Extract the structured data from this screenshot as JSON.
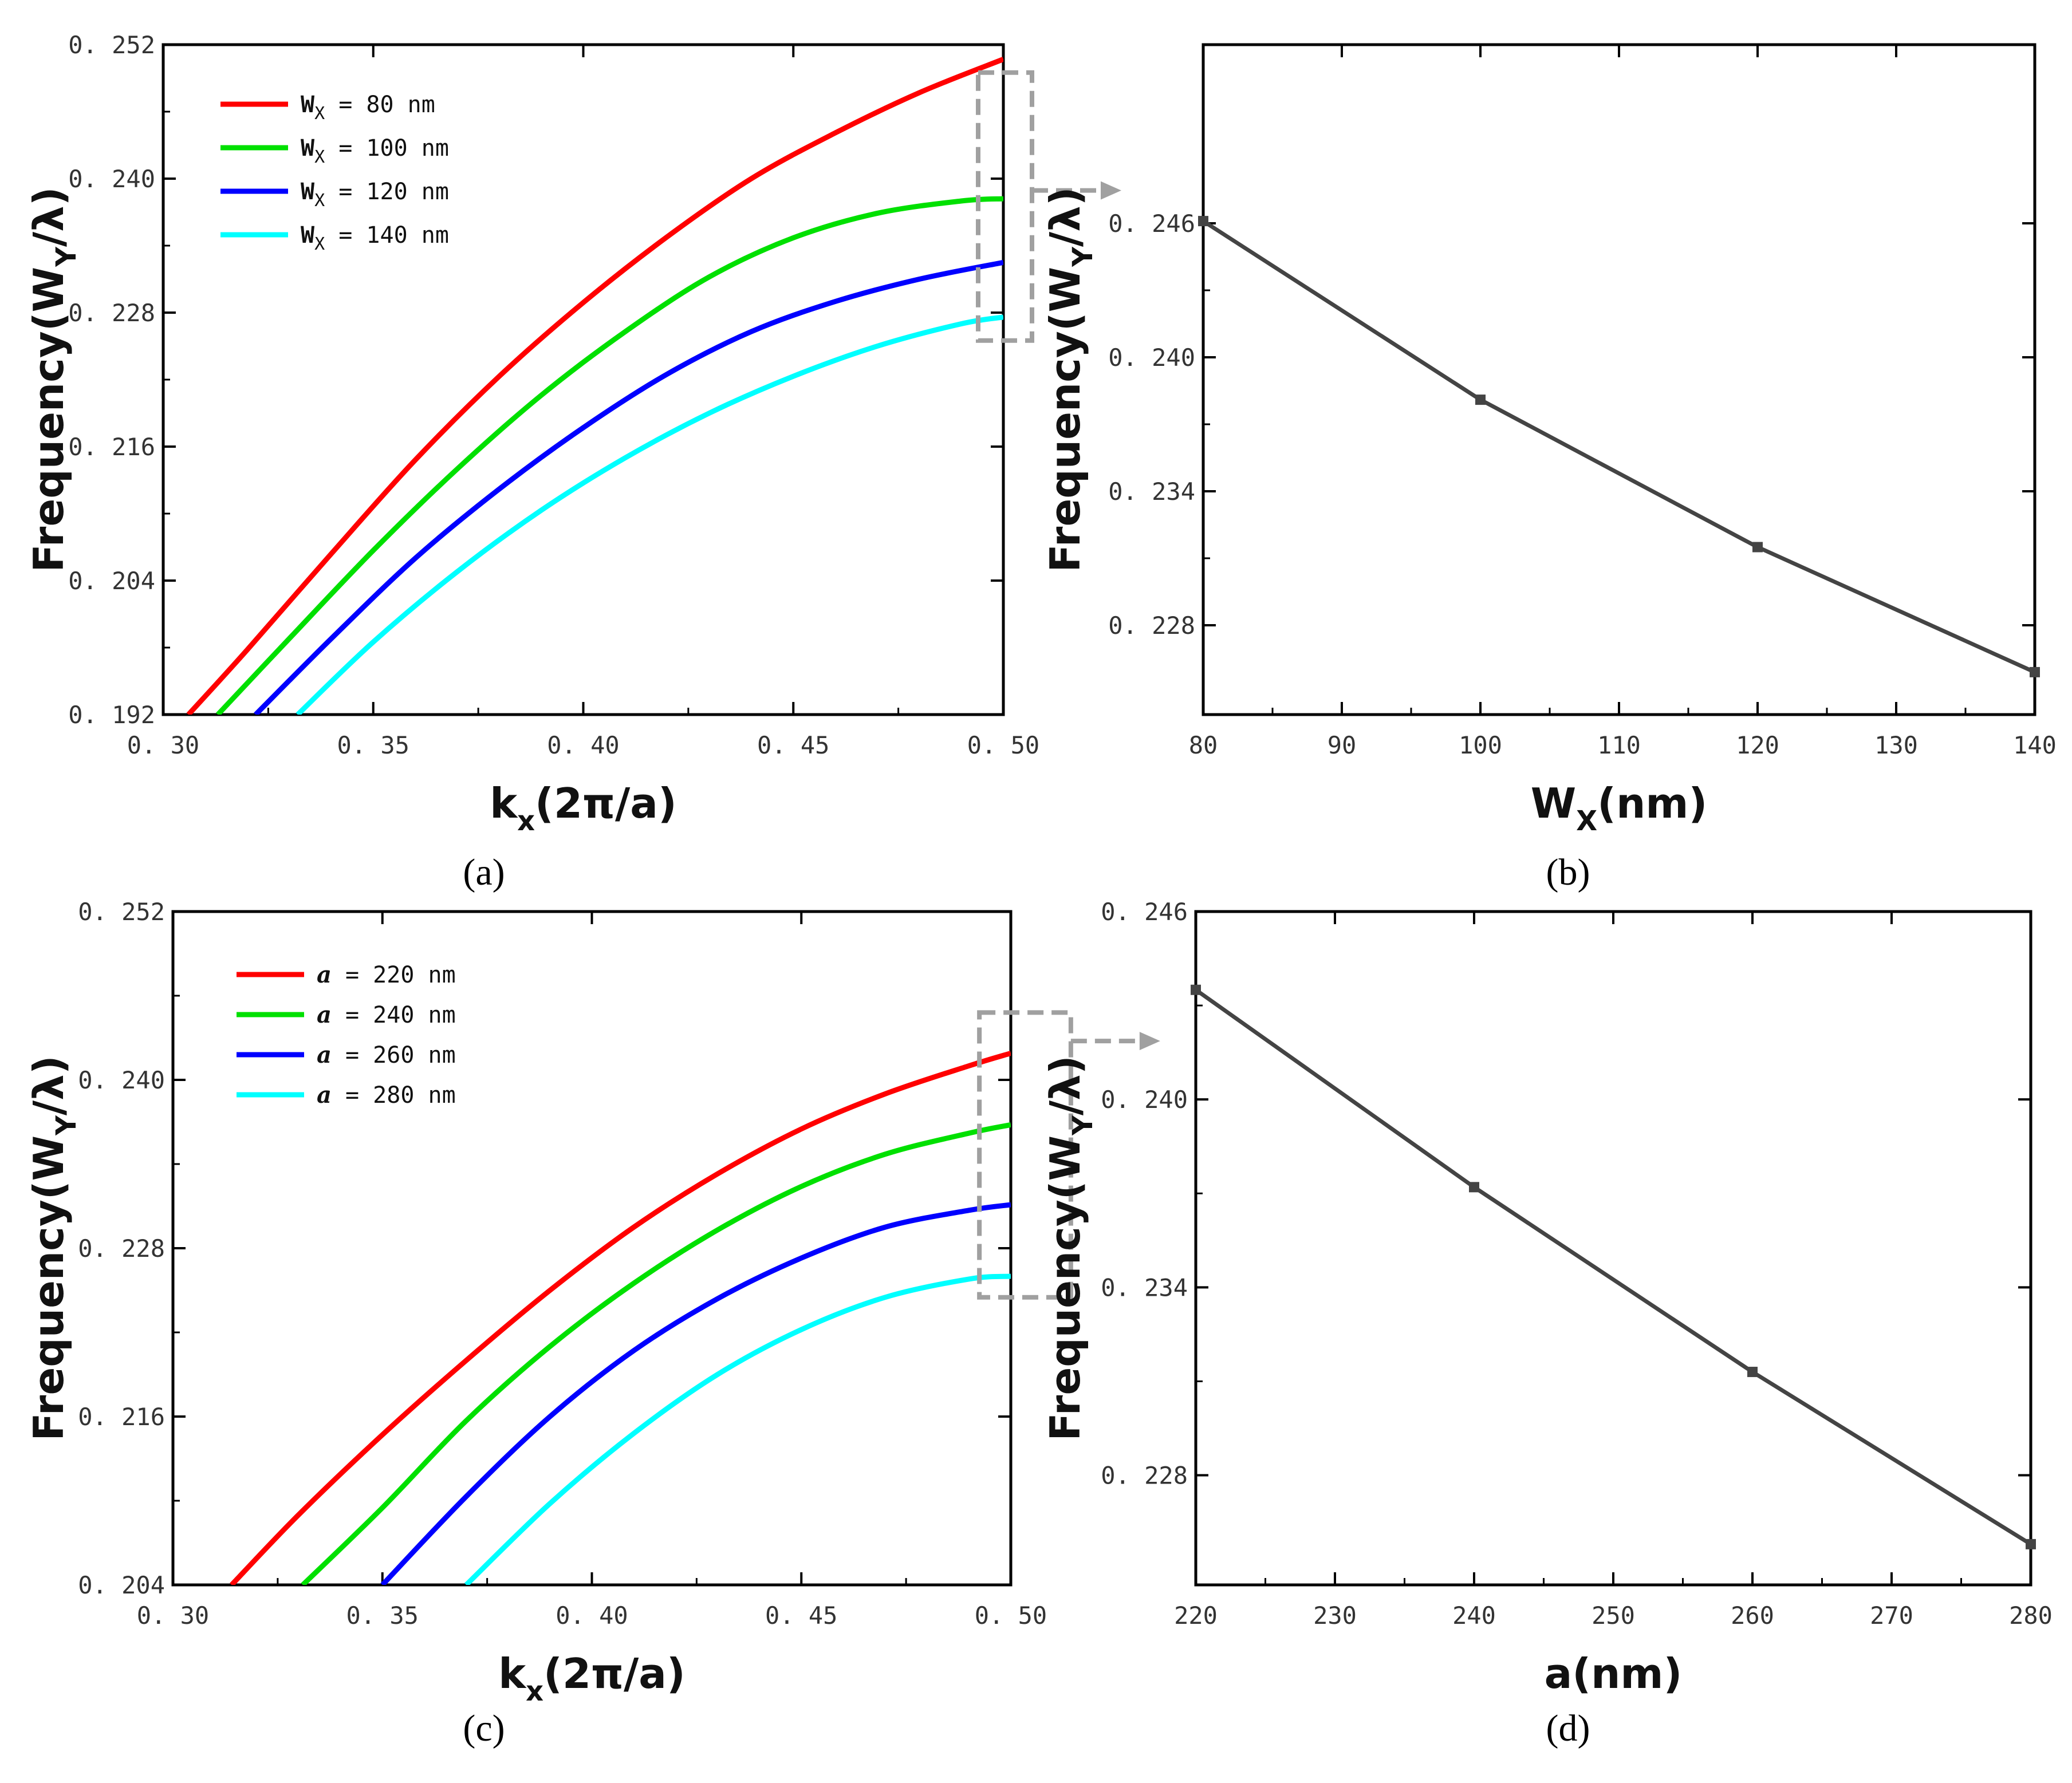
{
  "chart_data": [
    {
      "id": "a",
      "type": "line",
      "panel_label": "(a)",
      "xlabel_main": "k",
      "xlabel_sub": "x",
      "xlabel_rest": "(2π/a)",
      "ylabel_main": "Frequency(W",
      "ylabel_sub": "Y",
      "ylabel_rest": "/λ)",
      "xlim": [
        0.3,
        0.5
      ],
      "ylim": [
        0.192,
        0.252
      ],
      "xticks": [
        0.3,
        0.35,
        0.4,
        0.45,
        0.5
      ],
      "xtick_labels": [
        "0. 30",
        "0. 35",
        "0. 40",
        "0. 45",
        "0. 50"
      ],
      "yticks": [
        0.192,
        0.204,
        0.216,
        0.228,
        0.24,
        0.252
      ],
      "ytick_labels": [
        "0. 192",
        "0. 204",
        "0. 216",
        "0. 228",
        "0. 240",
        "0. 252"
      ],
      "legend_position": "top-left",
      "inset_box": {
        "x_range": [
          0.494,
          0.5
        ],
        "y_range": [
          0.2255,
          0.2495
        ]
      },
      "series": [
        {
          "name": "80 nm",
          "legend_var": "W",
          "legend_sub": "X",
          "legend_rest": " = 80 nm",
          "color": "#ff0000",
          "x": [
            0.306,
            0.32,
            0.34,
            0.36,
            0.38,
            0.4,
            0.42,
            0.44,
            0.46,
            0.48,
            0.5
          ],
          "y": [
            0.192,
            0.1978,
            0.2064,
            0.2148,
            0.2223,
            0.2289,
            0.2348,
            0.24,
            0.2441,
            0.2477,
            0.2507
          ]
        },
        {
          "name": "100 nm",
          "legend_var": "W",
          "legend_sub": "X",
          "legend_rest": " = 100 nm",
          "color": "#00e000",
          "x": [
            0.313,
            0.33,
            0.35,
            0.37,
            0.39,
            0.41,
            0.43,
            0.45,
            0.47,
            0.49,
            0.5
          ],
          "y": [
            0.192,
            0.1988,
            0.2067,
            0.214,
            0.2206,
            0.2263,
            0.2312,
            0.2347,
            0.2369,
            0.238,
            0.2382
          ]
        },
        {
          "name": "120 nm",
          "legend_var": "W",
          "legend_sub": "X",
          "legend_rest": " = 120 nm",
          "color": "#0000ff",
          "x": [
            0.322,
            0.34,
            0.36,
            0.38,
            0.4,
            0.42,
            0.44,
            0.46,
            0.48,
            0.5
          ],
          "y": [
            0.192,
            0.1988,
            0.206,
            0.2122,
            0.2177,
            0.2225,
            0.2263,
            0.229,
            0.231,
            0.2325
          ]
        },
        {
          "name": "140 nm",
          "legend_var": "W",
          "legend_sub": "X",
          "legend_rest": " = 140 nm",
          "color": "#00ffff",
          "x": [
            0.332,
            0.35,
            0.37,
            0.39,
            0.41,
            0.43,
            0.45,
            0.47,
            0.49,
            0.5
          ],
          "y": [
            0.192,
            0.1985,
            0.2048,
            0.2103,
            0.215,
            0.219,
            0.2223,
            0.225,
            0.227,
            0.2276
          ]
        }
      ]
    },
    {
      "id": "b",
      "type": "line",
      "panel_label": "(b)",
      "xlabel_main": "W",
      "xlabel_sub": "X",
      "xlabel_rest": "(nm)",
      "ylabel_main": "Frequency(W",
      "ylabel_sub": "Y",
      "ylabel_rest": "/λ)",
      "xlim": [
        80,
        140
      ],
      "ylim": [
        0.224,
        0.254
      ],
      "xticks": [
        80,
        90,
        100,
        110,
        120,
        130,
        140
      ],
      "xtick_labels": [
        "80",
        "90",
        "100",
        "110",
        "120",
        "130",
        "140"
      ],
      "yticks": [
        0.228,
        0.234,
        0.24,
        0.246
      ],
      "ytick_labels": [
        "0. 228",
        "0. 234",
        "0. 240",
        "0. 246"
      ],
      "series": [
        {
          "name": "frequency",
          "color": "#444444",
          "x": [
            80,
            100,
            120,
            140
          ],
          "y": [
            0.2461,
            0.2381,
            0.2315,
            0.2259
          ]
        }
      ]
    },
    {
      "id": "c",
      "type": "line",
      "panel_label": "(c)",
      "xlabel_main": "k",
      "xlabel_sub": "x",
      "xlabel_rest": "(2π/a)",
      "ylabel_main": "Frequency(W",
      "ylabel_sub": "Y",
      "ylabel_rest": "/λ)",
      "xlim": [
        0.3,
        0.5
      ],
      "ylim": [
        0.204,
        0.252
      ],
      "xticks": [
        0.3,
        0.35,
        0.4,
        0.45,
        0.5
      ],
      "xtick_labels": [
        "0. 30",
        "0. 35",
        "0. 40",
        "0. 45",
        "0. 50"
      ],
      "yticks": [
        0.204,
        0.216,
        0.228,
        0.24,
        0.252
      ],
      "ytick_labels": [
        "0. 204",
        "0. 216",
        "0. 228",
        "0. 240",
        "0. 252"
      ],
      "legend_position": "top-left",
      "inset_box": {
        "x_range": [
          0.4925,
          0.5075
        ],
        "y_range": [
          0.2245,
          0.2448
        ]
      },
      "series": [
        {
          "name": "220 nm",
          "legend_var": "a",
          "legend_sub": "",
          "legend_rest": " = 220 nm",
          "color": "#ff0000",
          "x": [
            0.314,
            0.33,
            0.35,
            0.37,
            0.39,
            0.41,
            0.43,
            0.45,
            0.47,
            0.49,
            0.5
          ],
          "y": [
            0.204,
            0.209,
            0.2147,
            0.22,
            0.225,
            0.2295,
            0.2333,
            0.2365,
            0.239,
            0.241,
            0.2419
          ]
        },
        {
          "name": "240 nm",
          "legend_var": "a",
          "legend_sub": "",
          "legend_rest": " = 240 nm",
          "color": "#00e000",
          "x": [
            0.331,
            0.35,
            0.37,
            0.39,
            0.41,
            0.43,
            0.45,
            0.47,
            0.49,
            0.5
          ],
          "y": [
            0.204,
            0.2095,
            0.2157,
            0.221,
            0.2255,
            0.2293,
            0.2324,
            0.2347,
            0.2362,
            0.2368
          ]
        },
        {
          "name": "260 nm",
          "legend_var": "a",
          "legend_sub": "",
          "legend_rest": " = 260 nm",
          "color": "#0000ff",
          "x": [
            0.35,
            0.37,
            0.39,
            0.41,
            0.43,
            0.45,
            0.47,
            0.49,
            0.5
          ],
          "y": [
            0.204,
            0.2103,
            0.216,
            0.2207,
            0.2244,
            0.2273,
            0.2295,
            0.2307,
            0.2311
          ]
        },
        {
          "name": "280 nm",
          "legend_var": "a",
          "legend_sub": "",
          "legend_rest": " = 280 nm",
          "color": "#00ffff",
          "x": [
            0.37,
            0.39,
            0.41,
            0.43,
            0.45,
            0.47,
            0.49,
            0.5
          ],
          "y": [
            0.204,
            0.2098,
            0.2148,
            0.219,
            0.2222,
            0.2245,
            0.2258,
            0.226
          ]
        }
      ]
    },
    {
      "id": "d",
      "type": "line",
      "panel_label": "(d)",
      "xlabel_main": "a",
      "xlabel_sub": "",
      "xlabel_rest": "(nm)",
      "ylabel_main": "Frequency(W",
      "ylabel_sub": "Y",
      "ylabel_rest": "/λ)",
      "xlim": [
        220,
        280
      ],
      "ylim": [
        0.2245,
        0.246
      ],
      "xticks": [
        220,
        230,
        240,
        250,
        260,
        270,
        280
      ],
      "xtick_labels": [
        "220",
        "230",
        "240",
        "250",
        "260",
        "270",
        "280"
      ],
      "yticks": [
        0.228,
        0.234,
        0.24,
        0.246
      ],
      "ytick_labels": [
        "0. 228",
        "0. 234",
        "0. 240",
        "0. 246"
      ],
      "series": [
        {
          "name": "frequency",
          "color": "#444444",
          "x": [
            220,
            240,
            260,
            280
          ],
          "y": [
            0.2435,
            0.2372,
            0.2313,
            0.2258
          ]
        }
      ]
    }
  ]
}
